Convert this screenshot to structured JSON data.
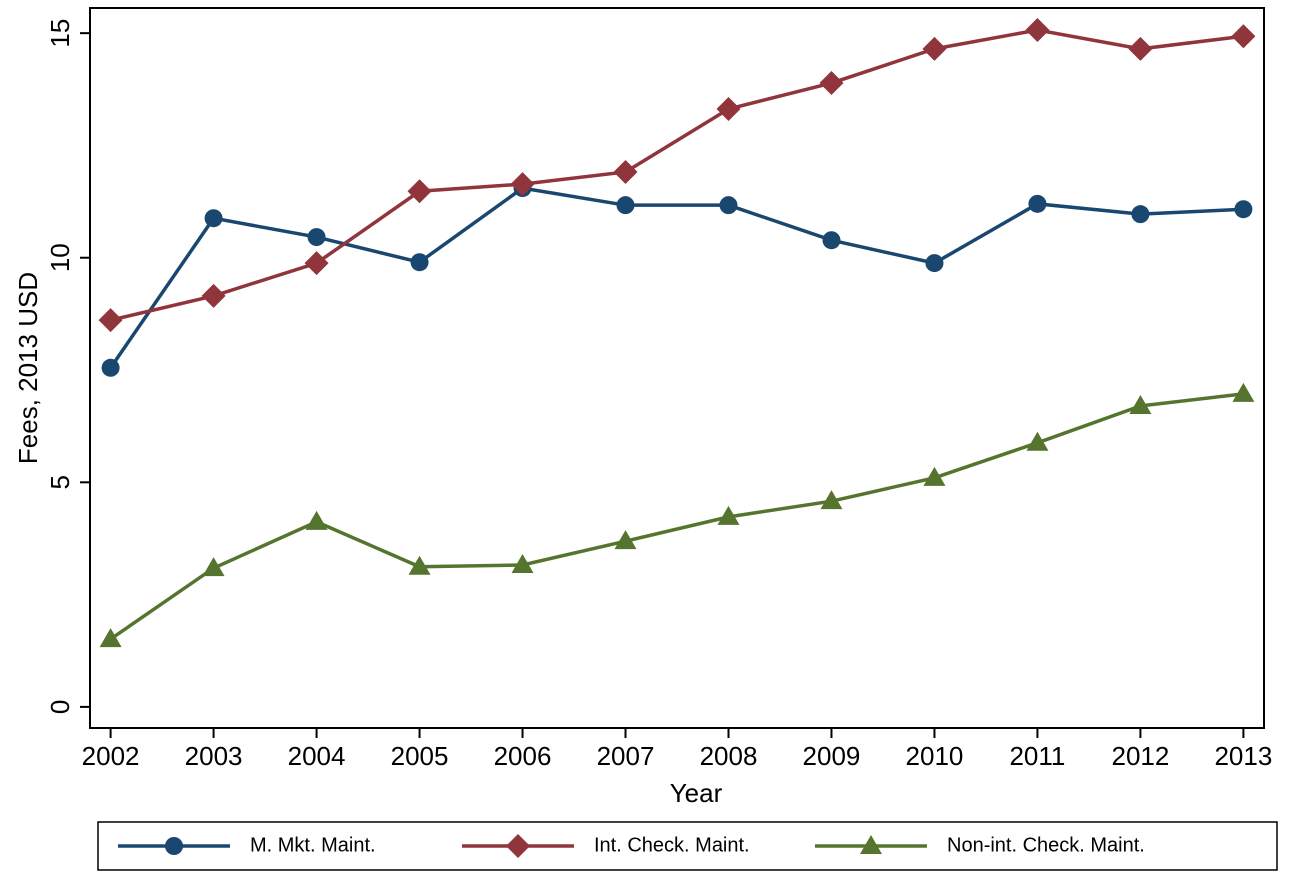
{
  "chart_data": {
    "type": "line",
    "x_label": "Year",
    "y_label": "Fees, 2013 USD",
    "x": [
      2002,
      2003,
      2004,
      2005,
      2006,
      2007,
      2008,
      2009,
      2010,
      2011,
      2012,
      2013
    ],
    "series": [
      {
        "name": "M. Mkt. Maint.",
        "color": "#1a476f",
        "marker": "circle",
        "values": [
          7.55,
          10.88,
          10.46,
          9.9,
          11.55,
          11.17,
          11.17,
          10.39,
          9.88,
          11.2,
          10.97,
          11.08
        ]
      },
      {
        "name": "Int. Check. Maint.",
        "color": "#90353b",
        "marker": "diamond",
        "values": [
          8.61,
          9.15,
          9.88,
          11.48,
          11.64,
          11.91,
          13.31,
          13.89,
          14.65,
          15.07,
          14.65,
          14.93
        ]
      },
      {
        "name": "Non-int. Check. Maint.",
        "color": "#55752f",
        "marker": "triangle",
        "values": [
          1.51,
          3.09,
          4.12,
          3.12,
          3.16,
          3.69,
          4.23,
          4.58,
          5.1,
          5.88,
          6.7,
          6.97
        ]
      }
    ],
    "xlim": [
      2001.8,
      2013.2
    ],
    "xticks": [
      2002,
      2003,
      2004,
      2005,
      2006,
      2007,
      2008,
      2009,
      2010,
      2011,
      2012,
      2013
    ],
    "ylim": [
      -0.47,
      15.56
    ],
    "yticks": [
      0,
      5,
      10,
      15
    ],
    "grid": false,
    "legend": "bottom"
  }
}
